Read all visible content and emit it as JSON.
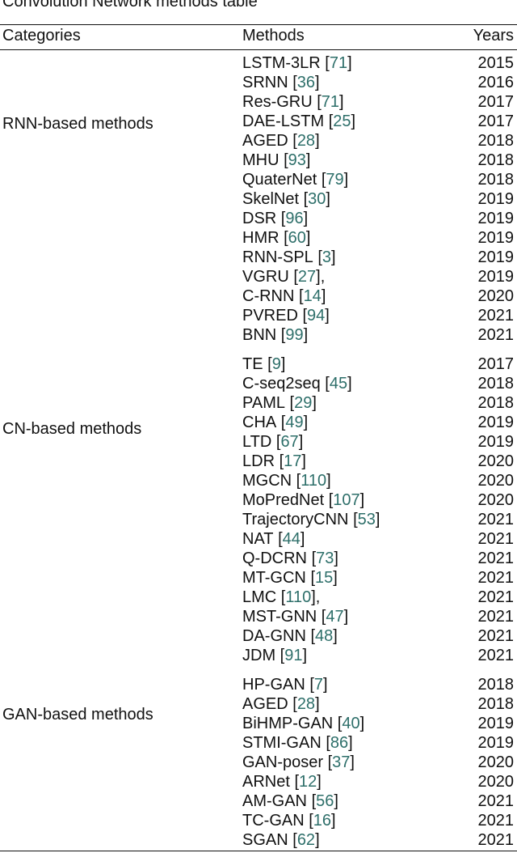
{
  "caption": "Convolution Network methods table",
  "header": [
    "Categories",
    "Methods",
    "Years"
  ],
  "groups": [
    {
      "category": "RNN-based methods",
      "rows": [
        {
          "method": "LSTM-3LR",
          "cite": "[71]",
          "year": "2015"
        },
        {
          "method": "SRNN",
          "cite": "[36]",
          "year": "2016"
        },
        {
          "method": "Res-GRU",
          "cite": "[71]",
          "year": "2017"
        },
        {
          "method": "DAE-LSTM",
          "cite": "[25]",
          "year": "2017"
        },
        {
          "method": "AGED",
          "cite": "[28]",
          "year": "2018"
        },
        {
          "method": "MHU",
          "cite": "[93]",
          "year": "2018"
        },
        {
          "method": "QuaterNet",
          "cite": "[79]",
          "year": "2018"
        },
        {
          "method": "SkelNet",
          "cite": "[30]",
          "year": "2019"
        },
        {
          "method": "DSR",
          "cite": "[96]",
          "year": "2019"
        },
        {
          "method": "HMR",
          "cite": "[60]",
          "year": "2019"
        },
        {
          "method": "RNN-SPL",
          "cite": "[3]",
          "year": "2019"
        },
        {
          "method": "VGRU",
          "cite": "[27],",
          "year": "2019"
        },
        {
          "method": "C-RNN",
          "cite": "[14]",
          "year": "2020"
        },
        {
          "method": "PVRED",
          "cite": "[94]",
          "year": "2021"
        },
        {
          "method": "BNN",
          "cite": "[99]",
          "year": "2021"
        }
      ]
    },
    {
      "category": "CN-based methods",
      "rows": [
        {
          "method": "TE",
          "cite": "[9]",
          "year": "2017"
        },
        {
          "method": "C-seq2seq",
          "cite": "[45]",
          "year": "2018"
        },
        {
          "method": "PAML",
          "cite": "[29]",
          "year": "2018"
        },
        {
          "method": "CHA",
          "cite": "[49]",
          "year": "2019"
        },
        {
          "method": "LTD",
          "cite": "[67]",
          "year": "2019"
        },
        {
          "method": "LDR",
          "cite": "[17]",
          "year": "2020"
        },
        {
          "method": "MGCN",
          "cite": "[110]",
          "year": "2020"
        },
        {
          "method": "MoPredNet",
          "cite": "[107]",
          "year": "2020"
        },
        {
          "method": "TrajectoryCNN",
          "cite": "[53]",
          "year": "2021"
        },
        {
          "method": "NAT",
          "cite": "[44]",
          "year": "2021"
        },
        {
          "method": "Q-DCRN",
          "cite": "[73]",
          "year": "2021"
        },
        {
          "method": "MT-GCN",
          "cite": "[15]",
          "year": "2021"
        },
        {
          "method": "LMC",
          "cite": "[110],",
          "year": "2021"
        },
        {
          "method": "MST-GNN",
          "cite": "[47]",
          "year": "2021"
        },
        {
          "method": "DA-GNN",
          "cite": "[48]",
          "year": "2021"
        },
        {
          "method": "JDM",
          "cite": "[91]",
          "year": "2021"
        }
      ]
    },
    {
      "category": "GAN-based methods",
      "rows": [
        {
          "method": "HP-GAN",
          "cite": "[7]",
          "year": "2018"
        },
        {
          "method": "AGED",
          "cite": "[28]",
          "year": "2018"
        },
        {
          "method": "BiHMP-GAN",
          "cite": "[40]",
          "year": "2019"
        },
        {
          "method": "STMI-GAN",
          "cite": "[86]",
          "year": "2019"
        },
        {
          "method": "GAN-poser",
          "cite": "[37]",
          "year": "2020"
        },
        {
          "method": "ARNet",
          "cite": "[12]",
          "year": "2020"
        },
        {
          "method": "AM-GAN",
          "cite": "[56]",
          "year": "2021"
        },
        {
          "method": "TC-GAN",
          "cite": "[16]",
          "year": "2021"
        },
        {
          "method": "SGAN",
          "cite": "[62]",
          "year": "2021"
        }
      ]
    }
  ]
}
